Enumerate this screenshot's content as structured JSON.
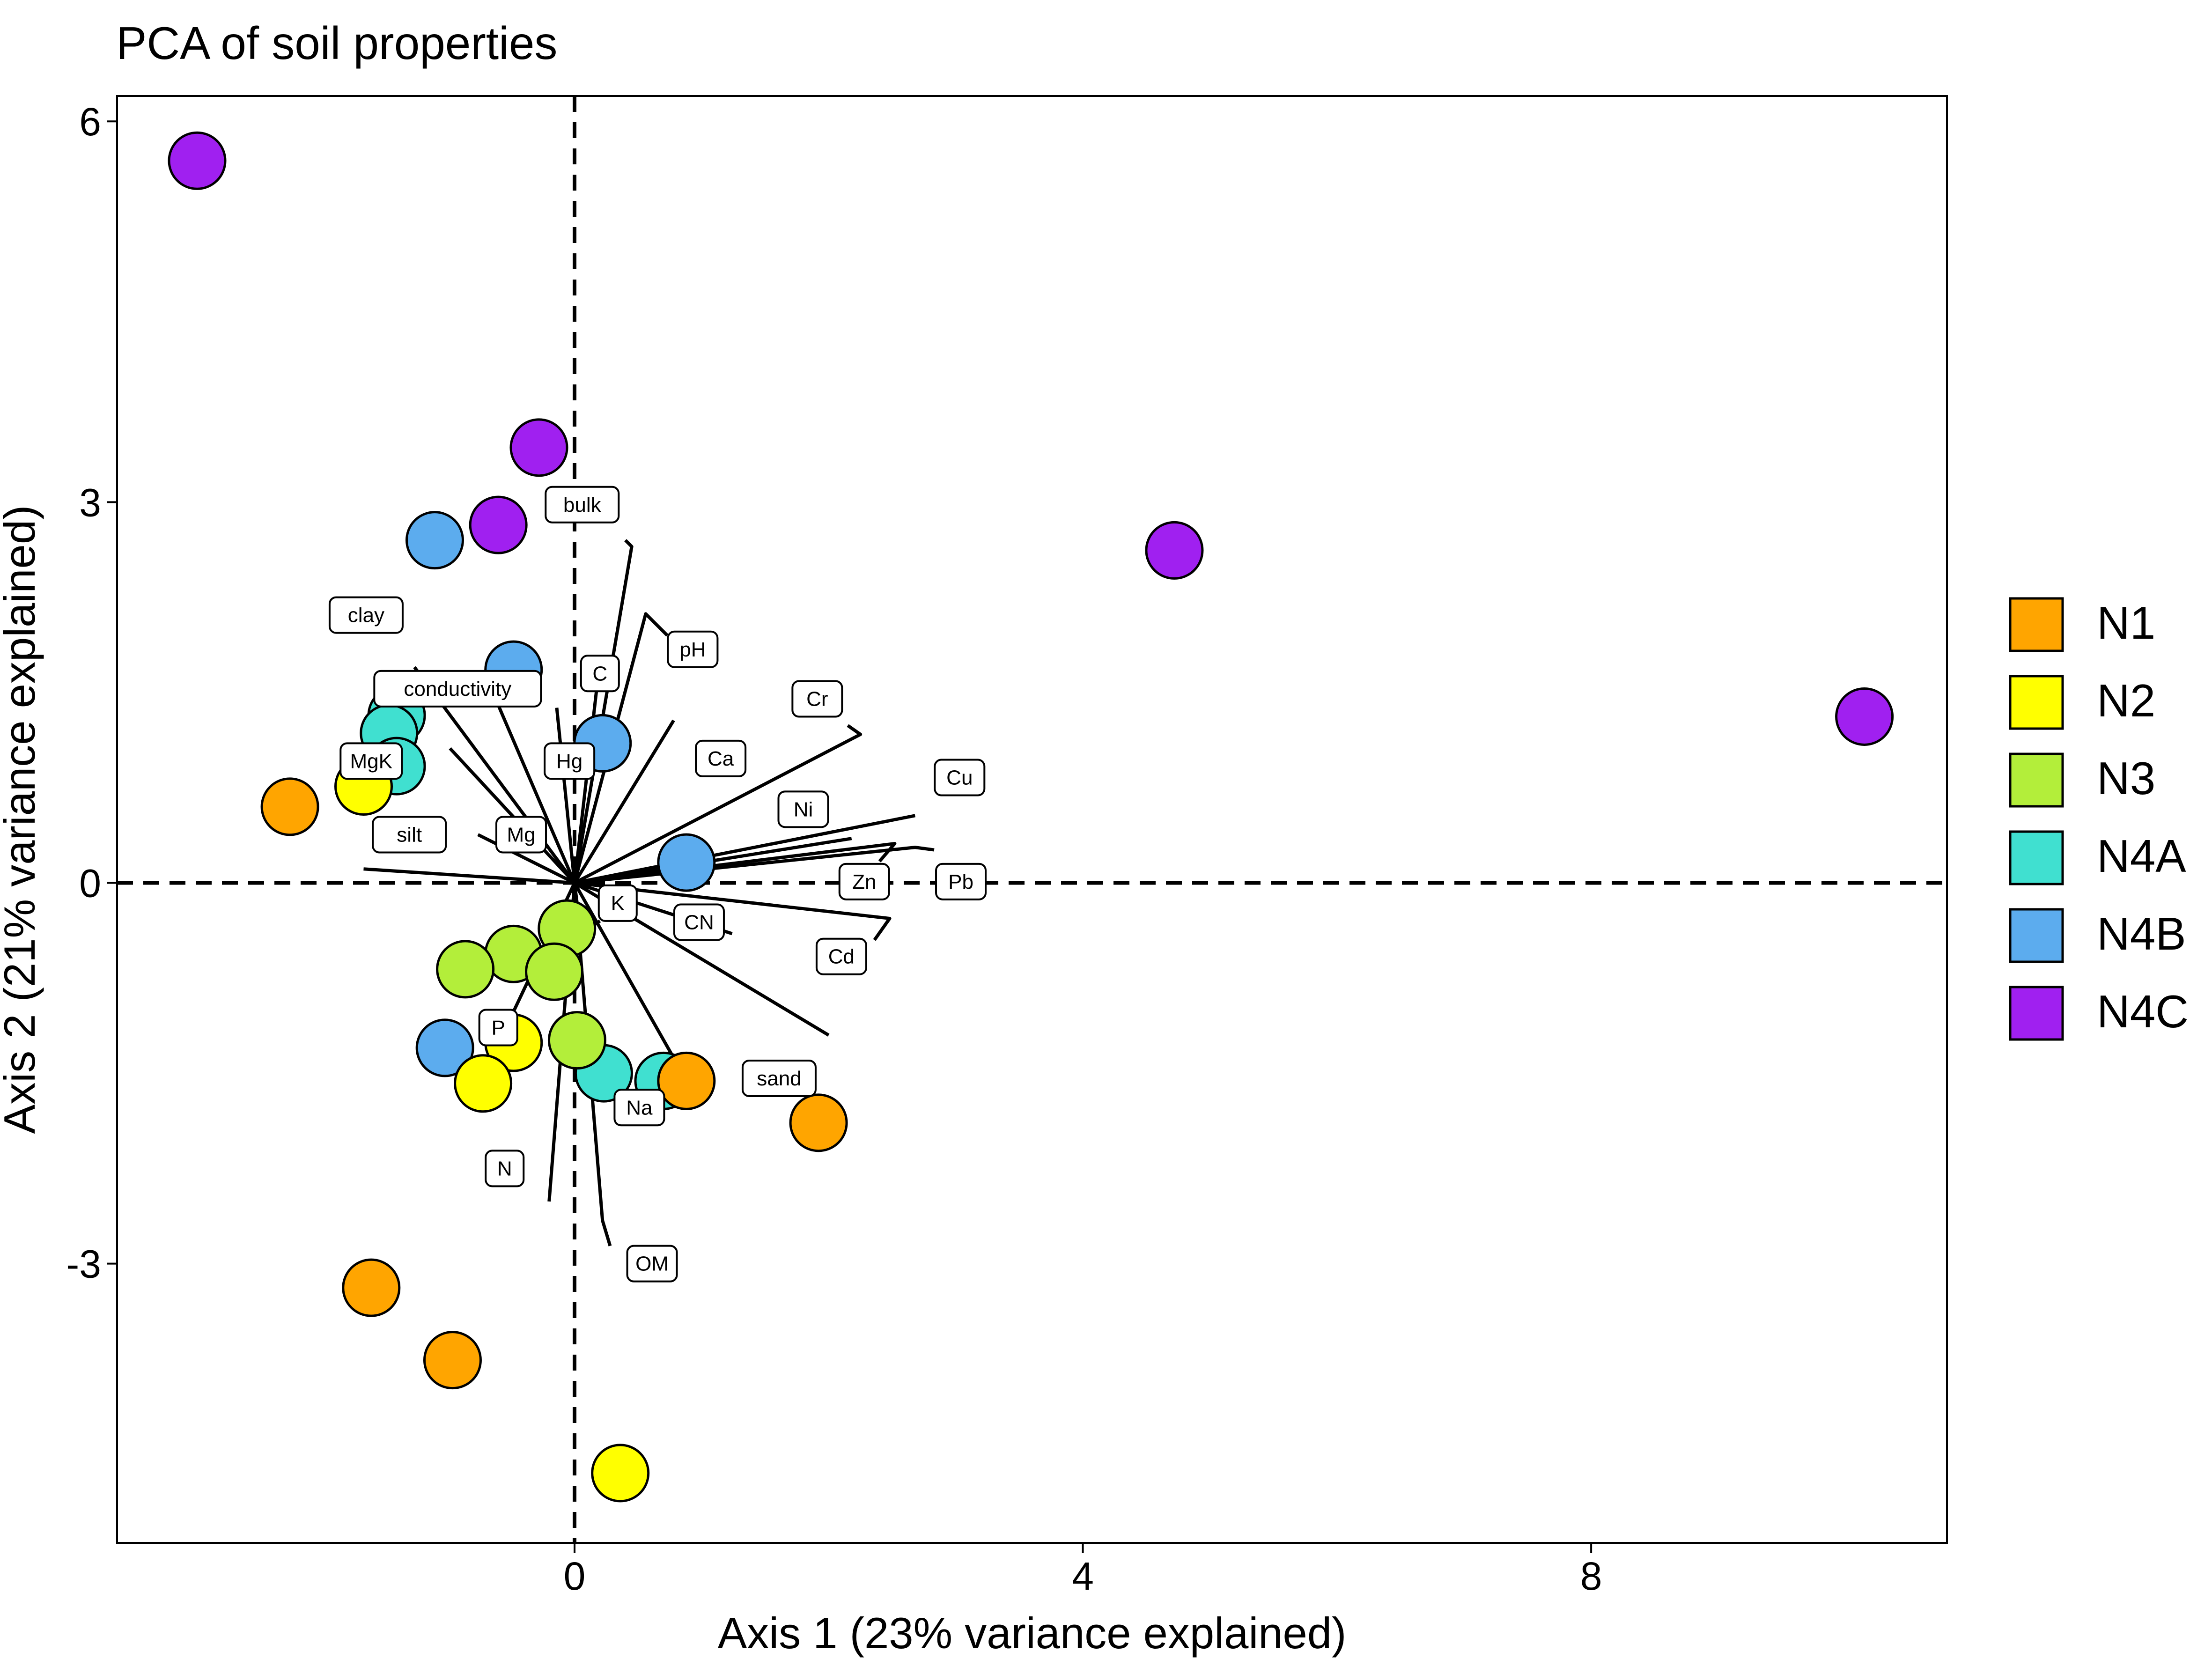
{
  "chart_data": {
    "type": "scatter",
    "title": "PCA of soil properties",
    "xlabel": "Axis 1 (23% variance explained)",
    "ylabel": "Axis 2 (21% variance explained)",
    "xlim": [
      -3.6,
      10.8
    ],
    "ylim": [
      -5.2,
      6.2
    ],
    "x_ticks": [
      0,
      4,
      8
    ],
    "y_ticks": [
      -3,
      0,
      3,
      6
    ],
    "x_tick_labels": [
      "0",
      "4",
      "8"
    ],
    "y_tick_labels": [
      "-3",
      "0",
      "3",
      "6"
    ],
    "reference_lines": {
      "x": 0,
      "y": 0,
      "style": "dashed"
    },
    "legend_position": "right",
    "grid": false,
    "groups": [
      {
        "name": "N1",
        "color": "#FFA500"
      },
      {
        "name": "N2",
        "color": "#FFFF00"
      },
      {
        "name": "N3",
        "color": "#B3EE3A"
      },
      {
        "name": "N4A",
        "color": "#40E0D0"
      },
      {
        "name": "N4B",
        "color": "#5CACEE"
      },
      {
        "name": "N4C",
        "color": "#A020F0"
      }
    ],
    "points": [
      {
        "group": "N4C",
        "x": -2.97,
        "y": 5.69
      },
      {
        "group": "N4C",
        "x": -0.28,
        "y": 3.43
      },
      {
        "group": "N4C",
        "x": -0.6,
        "y": 2.82
      },
      {
        "group": "N4C",
        "x": 4.72,
        "y": 2.62
      },
      {
        "group": "N4C",
        "x": 10.15,
        "y": 1.31
      },
      {
        "group": "N4B",
        "x": -1.1,
        "y": 2.7
      },
      {
        "group": "N4B",
        "x": -0.48,
        "y": 1.68
      },
      {
        "group": "N4B",
        "x": 0.22,
        "y": 1.1
      },
      {
        "group": "N4B",
        "x": 0.88,
        "y": 0.16
      },
      {
        "group": "N4B",
        "x": -1.02,
        "y": -1.3
      },
      {
        "group": "N4A",
        "x": -1.4,
        "y": 1.32
      },
      {
        "group": "N4A",
        "x": -1.46,
        "y": 1.18
      },
      {
        "group": "N4A",
        "x": -1.4,
        "y": 0.92
      },
      {
        "group": "N4A",
        "x": 0.23,
        "y": -1.5
      },
      {
        "group": "N4A",
        "x": 0.7,
        "y": -1.56
      },
      {
        "group": "N2",
        "x": -1.66,
        "y": 0.76
      },
      {
        "group": "N2",
        "x": -0.48,
        "y": -1.26
      },
      {
        "group": "N2",
        "x": -0.72,
        "y": -1.58
      },
      {
        "group": "N2",
        "x": 0.36,
        "y": -4.65
      },
      {
        "group": "N1",
        "x": -2.24,
        "y": 0.6
      },
      {
        "group": "N1",
        "x": 0.88,
        "y": -1.56
      },
      {
        "group": "N1",
        "x": 1.92,
        "y": -1.89
      },
      {
        "group": "N1",
        "x": -1.6,
        "y": -3.19
      },
      {
        "group": "N1",
        "x": -0.96,
        "y": -3.76
      },
      {
        "group": "N3",
        "x": -0.06,
        "y": -0.36
      },
      {
        "group": "N3",
        "x": -0.48,
        "y": -0.56
      },
      {
        "group": "N3",
        "x": -0.16,
        "y": -0.7
      },
      {
        "group": "N3",
        "x": -0.86,
        "y": -0.68
      },
      {
        "group": "N3",
        "x": 0.02,
        "y": -1.24
      }
    ],
    "loadings": [
      {
        "name": "bulk",
        "x": 0.45,
        "y": 2.65,
        "lx": 0.06,
        "ly": 2.98,
        "kx": 0.4,
        "ky": 2.7
      },
      {
        "name": "clay",
        "x": -1.26,
        "y": 1.7,
        "lx": -1.64,
        "ly": 2.11
      },
      {
        "name": "pH",
        "x": 0.56,
        "y": 2.12,
        "lx": 0.93,
        "ly": 1.84,
        "kx": 0.73,
        "ky": 1.95
      },
      {
        "name": "C",
        "x": 0.18,
        "y": 1.58,
        "lx": 0.2,
        "ly": 1.65
      },
      {
        "name": "conductivity",
        "x": -0.6,
        "y": 1.4,
        "lx": -0.92,
        "ly": 1.53
      },
      {
        "name": "Cr",
        "x": 2.25,
        "y": 1.17,
        "lx": 1.91,
        "ly": 1.45,
        "kx": 2.15,
        "ky": 1.24
      },
      {
        "name": "Hg",
        "x": -0.14,
        "y": 1.38,
        "lx": -0.04,
        "ly": 0.96
      },
      {
        "name": "Ca",
        "x": 0.78,
        "y": 1.28,
        "lx": 1.15,
        "ly": 0.98
      },
      {
        "name": "MgK",
        "x": -0.98,
        "y": 1.06,
        "lx": -1.6,
        "ly": 0.96
      },
      {
        "name": "Cu",
        "x": 2.68,
        "y": 0.53,
        "lx": 3.03,
        "ly": 0.83
      },
      {
        "name": "Ni",
        "x": 2.18,
        "y": 0.35,
        "lx": 1.8,
        "ly": 0.58
      },
      {
        "name": "silt",
        "x": -1.66,
        "y": 0.11,
        "lx": -1.3,
        "ly": 0.38
      },
      {
        "name": "Mg",
        "x": -0.76,
        "y": 0.38,
        "lx": -0.42,
        "ly": 0.38
      },
      {
        "name": "Zn",
        "x": 2.52,
        "y": 0.31,
        "lx": 2.28,
        "ly": 0.01,
        "kx": 2.4,
        "ky": 0.17
      },
      {
        "name": "Pb",
        "x": 2.68,
        "y": 0.28,
        "lx": 3.04,
        "ly": 0.01,
        "kx": 2.83,
        "ky": 0.26
      },
      {
        "name": "K",
        "x": 0.05,
        "y": -0.4,
        "lx": 0.34,
        "ly": -0.16,
        "kx": 0.2,
        "ky": -0.3
      },
      {
        "name": "CN",
        "x": 1.24,
        "y": -0.4,
        "lx": 0.98,
        "ly": -0.31
      },
      {
        "name": "Cd",
        "x": 2.48,
        "y": -0.28,
        "lx": 2.1,
        "ly": -0.58,
        "kx": 2.36,
        "ky": -0.45
      },
      {
        "name": "P",
        "x": -0.54,
        "y": -1.14,
        "lx": -0.6,
        "ly": -1.14
      },
      {
        "name": "sand",
        "x": 2.0,
        "y": -1.2,
        "lx": 1.61,
        "ly": -1.54
      },
      {
        "name": "Na",
        "x": 0.86,
        "y": -1.52,
        "lx": 0.51,
        "ly": -1.77,
        "kx": 0.74,
        "ky": -1.67
      },
      {
        "name": "N",
        "x": -0.2,
        "y": -2.51,
        "lx": -0.55,
        "ly": -2.25
      },
      {
        "name": "OM",
        "x": 0.22,
        "y": -2.66,
        "lx": 0.61,
        "ly": -3.0,
        "kx": 0.28,
        "ky": -2.86
      }
    ]
  }
}
